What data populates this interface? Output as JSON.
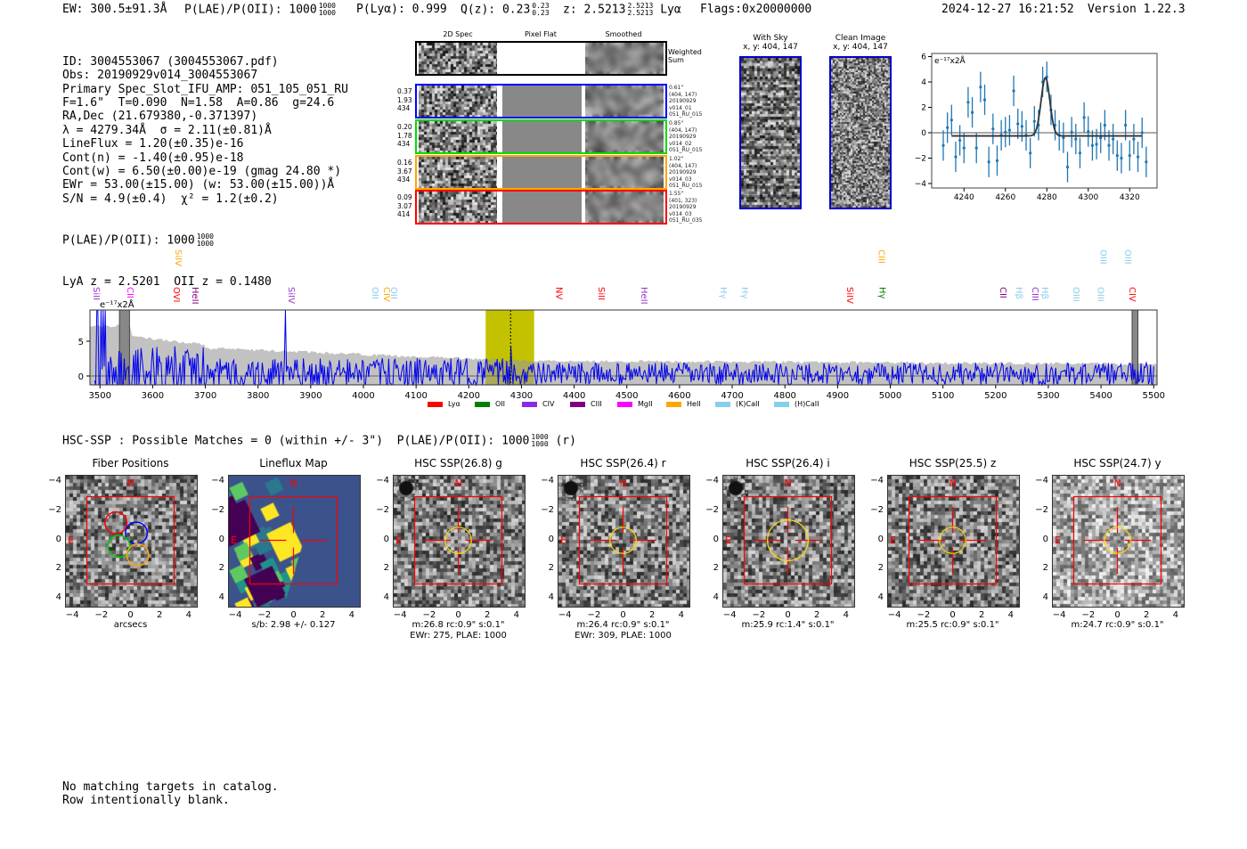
{
  "header": {
    "ew": "EW: 300.5±91.3Å",
    "plae_label": "P(LAE)/P(OII): 1000",
    "plae_hi": "1000",
    "plae_lo": "1000",
    "plya": "P(Lyα): 0.999",
    "qz": "Q(z): 0.23",
    "qz_hi": "0.23",
    "qz_lo": "0.23",
    "z": "z: 2.5213",
    "z_hi": "2.5213",
    "z_lo": "2.5213",
    "z_line": "Lyα",
    "flags": "Flags:0x20000000",
    "datetime": "2024-12-27 16:21:52",
    "version": "Version 1.22.3"
  },
  "info": {
    "lines": [
      "ID: 3004553067 (3004553067.pdf)",
      "Obs: 20190929v014_3004553067",
      "Primary Spec_Slot_IFU_AMP: 051_105_051_RU",
      "F=1.6\"  T=0.090  N=1.58  A=0.86  g=24.6",
      "RA,Dec (21.679380,-0.371397)",
      "λ = 4279.34Å  σ = 2.11(±0.81)Å",
      "LineFlux = 1.20(±0.35)e-16",
      "Cont(n) = -1.40(±0.95)e-18",
      "Cont(w) = 6.50(±0.00)e-19 (gmag 24.80 *)",
      "EWr = 53.00(±15.00) (w: 53.00(±15.00))Å",
      "S/N = 4.9(±0.4)  χ² = 1.2(±0.2)"
    ],
    "plae_label": "P(LAE)/P(OII): 1000",
    "plae_hi": "1000",
    "plae_lo": "1000",
    "redshift": "LyA z = 2.5201  OII z = 0.1480"
  },
  "spec2d": {
    "columns": [
      "2D Spec",
      "Pixel Flat",
      "Smoothed"
    ],
    "weighted_label": "Weighted\nSum",
    "rows": [
      {
        "color": "#0000ff",
        "left": [
          "0.37",
          "1.93",
          "434"
        ],
        "right": [
          "0.61\"",
          "(404, 147)",
          "20190929",
          "v014_01",
          "051_RU_015"
        ]
      },
      {
        "color": "#00dd00",
        "left": [
          "0.20",
          "1.78",
          "434"
        ],
        "right": [
          "0.85\"",
          "(404, 147)",
          "20190929",
          "v014_02",
          "051_RU_015"
        ]
      },
      {
        "color": "#ffa500",
        "left": [
          "0.16",
          "3.67",
          "434"
        ],
        "right": [
          "1.02\"",
          "(404, 147)",
          "20190929",
          "v014_03",
          "051_RU_015"
        ]
      },
      {
        "color": "#ff0000",
        "left": [
          "0.09",
          "3.07",
          "414"
        ],
        "right": [
          "1.55\"",
          "(401, 323)",
          "20190929",
          "v014_03",
          "051_RU_035"
        ]
      }
    ]
  },
  "cutouts": {
    "with_sky": "With Sky",
    "with_sky_xy": "x, y: 404, 147",
    "clean": "Clean Image",
    "clean_xy": "x, y: 404, 147"
  },
  "line_fit": {
    "units": "e⁻¹⁷x2Å",
    "xticks": [
      "4240",
      "4260",
      "4280",
      "4300",
      "4320"
    ],
    "yticks": [
      "6",
      "4",
      "2",
      "0",
      "−2",
      "−4"
    ],
    "x": [
      4230,
      4232,
      4234,
      4236,
      4238,
      4240,
      4242,
      4244,
      4246,
      4248,
      4250,
      4252,
      4254,
      4256,
      4258,
      4260,
      4262,
      4264,
      4266,
      4268,
      4270,
      4272,
      4274,
      4276,
      4278,
      4280,
      4282,
      4284,
      4286,
      4288,
      4290,
      4292,
      4294,
      4296,
      4298,
      4300,
      4302,
      4304,
      4306,
      4308,
      4310,
      4312,
      4314,
      4316,
      4318,
      4320,
      4322,
      4324,
      4326,
      4328
    ],
    "y": [
      -1.0,
      0.4,
      1.0,
      -1.9,
      -0.6,
      -1.2,
      2.4,
      1.6,
      -1.2,
      3.6,
      2.6,
      -2.3,
      0.3,
      -2.2,
      -0.2,
      0.05,
      0.2,
      3.3,
      0.7,
      0.5,
      -0.2,
      -1.6,
      0.9,
      0.6,
      4.0,
      4.4,
      1.8,
      0.6,
      -0.2,
      -0.4,
      -2.7,
      0.05,
      -0.5,
      -1.6,
      1.2,
      0.1,
      -1.0,
      -0.9,
      -0.4,
      0.6,
      -1.0,
      -0.5,
      -1.8,
      -2.0,
      0.6,
      -1.8,
      -0.5,
      -1.9,
      0.0,
      -2.3
    ],
    "err": 1.2,
    "fit_center": 4279.34,
    "fit_sigma": 2.11,
    "fit_amp": 4.6,
    "fit_base": -0.25
  },
  "spectrum": {
    "units": "e⁻¹⁷x2Å",
    "xticks": [
      "3500",
      "3600",
      "3700",
      "3800",
      "3900",
      "4000",
      "4100",
      "4200",
      "4300",
      "4400",
      "4500",
      "4600",
      "4700",
      "4800",
      "4900",
      "5000",
      "5100",
      "5200",
      "5300",
      "5400",
      "5500"
    ],
    "yticks": [
      "5",
      "0"
    ],
    "highlight_range": [
      4232,
      4324
    ],
    "line_wavelength": 4279.34,
    "lines": [
      {
        "name": "SiII",
        "w": 3491,
        "c": "#9932cc",
        "up": false
      },
      {
        "name": "CII",
        "w": 3555,
        "c": "#ff00ff",
        "up": false
      },
      {
        "name": "SiIV",
        "w": 3647,
        "c": "#ffa500",
        "up": true
      },
      {
        "name": "OVI",
        "w": 3643,
        "c": "#ff0000",
        "up": false
      },
      {
        "name": "HeII",
        "w": 3679,
        "c": "#800080",
        "up": false
      },
      {
        "name": "SiIV",
        "w": 3861,
        "c": "#9932cc",
        "up": false
      },
      {
        "name": "OII",
        "w": 4020,
        "c": "#87ceeb",
        "up": false
      },
      {
        "name": "CIV",
        "w": 4042,
        "c": "#ffa500",
        "up": false
      },
      {
        "name": "OII",
        "w": 4056,
        "c": "#87ceeb",
        "up": false
      },
      {
        "name": "NV",
        "w": 4369,
        "c": "#ff0000",
        "up": false
      },
      {
        "name": "SiII",
        "w": 4450,
        "c": "#ff0000",
        "up": false
      },
      {
        "name": "HeII",
        "w": 4531,
        "c": "#9932cc",
        "up": false
      },
      {
        "name": "Hγ",
        "w": 4681,
        "c": "#87ceeb",
        "up": false
      },
      {
        "name": "Hγ",
        "w": 4722,
        "c": "#87ceeb",
        "up": false
      },
      {
        "name": "SiIV",
        "w": 4921,
        "c": "#ff0000",
        "up": false
      },
      {
        "name": "CIII",
        "w": 4981,
        "c": "#ffa500",
        "up": true
      },
      {
        "name": "Hγ",
        "w": 4983,
        "c": "#008000",
        "up": false
      },
      {
        "name": "CII",
        "w": 5212,
        "c": "#800080",
        "up": false
      },
      {
        "name": "Hβ",
        "w": 5243,
        "c": "#87ceeb",
        "up": false
      },
      {
        "name": "CIII",
        "w": 5273,
        "c": "#9932cc",
        "up": false
      },
      {
        "name": "Hβ",
        "w": 5292,
        "c": "#87ceeb",
        "up": false
      },
      {
        "name": "OIII",
        "w": 5351,
        "c": "#87ceeb",
        "up": false
      },
      {
        "name": "OIII",
        "w": 5397,
        "c": "#87ceeb",
        "up": false
      },
      {
        "name": "OIII",
        "w": 5402,
        "c": "#87ceeb",
        "up": true
      },
      {
        "name": "OIII",
        "w": 5449,
        "c": "#87ceeb",
        "up": true
      },
      {
        "name": "CIV",
        "w": 5457,
        "c": "#ff0000",
        "up": false
      }
    ],
    "legend": [
      {
        "name": "Lyα",
        "c": "#ff0000"
      },
      {
        "name": "OII",
        "c": "#008000"
      },
      {
        "name": "CIV",
        "c": "#8a2be2"
      },
      {
        "name": "CIII",
        "c": "#800080"
      },
      {
        "name": "MgII",
        "c": "#ff00ff"
      },
      {
        "name": "HeII",
        "c": "#ffa500"
      },
      {
        "name": "(K)CaII",
        "c": "#87ceeb"
      },
      {
        "name": "(H)CaII",
        "c": "#87ceeb"
      }
    ]
  },
  "hsc": {
    "summary": "HSC-SSP : Possible Matches = 0 (within +/- 3\")  P(LAE)/P(OII): 1000",
    "summary_hi": "1000",
    "summary_lo": "1000",
    "summary_band": "(r)",
    "ticks": [
      "−4",
      "−2",
      "0",
      "2",
      "4"
    ],
    "north": "N",
    "east": "E",
    "panels": [
      {
        "title": "Fiber Positions",
        "caption": [
          "arcsecs"
        ]
      },
      {
        "title": "Lineflux Map",
        "caption": [
          "s/b: 2.98 +/- 0.127"
        ]
      },
      {
        "title": "HSC SSP(26.8) g",
        "caption": [
          "m:26.8 rc:0.9\"  s:0.1\"",
          "EWr: 275, PLAE: 1000"
        ]
      },
      {
        "title": "HSC SSP(26.4) r",
        "caption": [
          "m:26.4 rc:0.9\"  s:0.1\"",
          "EWr: 309, PLAE: 1000"
        ]
      },
      {
        "title": "HSC SSP(26.4) i",
        "caption": [
          "m:25.9 rc:1.4\"  s:0.1\""
        ]
      },
      {
        "title": "HSC SSP(25.5) z",
        "caption": [
          "m:25.5 rc:0.9\"  s:0.1\""
        ]
      },
      {
        "title": "HSC SSP(24.7) y",
        "caption": [
          "m:24.7 rc:0.9\"  s:0.1\""
        ]
      }
    ]
  },
  "footer": {
    "line1": "No matching targets in catalog.",
    "line2": "Row intentionally blank."
  }
}
